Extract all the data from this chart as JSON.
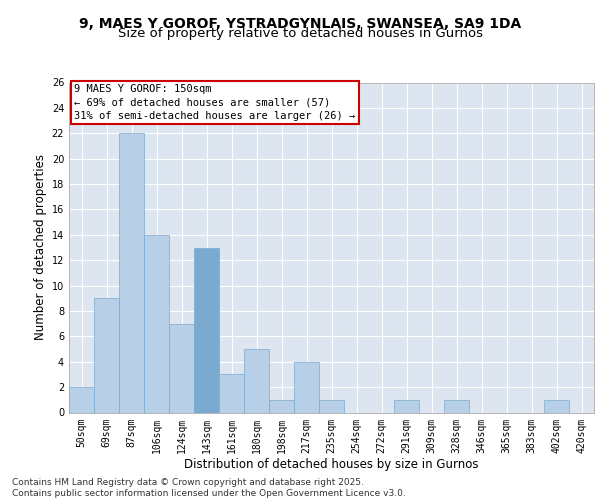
{
  "title1": "9, MAES Y GOROF, YSTRADGYNLAIS, SWANSEA, SA9 1DA",
  "title2": "Size of property relative to detached houses in Gurnos",
  "xlabel": "Distribution of detached houses by size in Gurnos",
  "ylabel": "Number of detached properties",
  "categories": [
    "50sqm",
    "69sqm",
    "87sqm",
    "106sqm",
    "124sqm",
    "143sqm",
    "161sqm",
    "180sqm",
    "198sqm",
    "217sqm",
    "235sqm",
    "254sqm",
    "272sqm",
    "291sqm",
    "309sqm",
    "328sqm",
    "346sqm",
    "365sqm",
    "383sqm",
    "402sqm",
    "420sqm"
  ],
  "values": [
    2,
    9,
    22,
    14,
    7,
    13,
    3,
    5,
    1,
    4,
    1,
    0,
    0,
    1,
    0,
    1,
    0,
    0,
    0,
    1,
    0
  ],
  "bar_color": "#b8cfe8",
  "bar_edge_color": "#7aaad0",
  "highlight_index": 5,
  "highlight_color": "#7aaad0",
  "annotation_box_text": "9 MAES Y GOROF: 150sqm\n← 69% of detached houses are smaller (57)\n31% of semi-detached houses are larger (26) →",
  "annotation_box_color": "#ffffff",
  "annotation_box_edge_color": "#cc0000",
  "background_color": "#dde6f0",
  "grid_color": "#ffffff",
  "ylim": [
    0,
    26
  ],
  "yticks": [
    0,
    2,
    4,
    6,
    8,
    10,
    12,
    14,
    16,
    18,
    20,
    22,
    24,
    26
  ],
  "footer_text": "Contains HM Land Registry data © Crown copyright and database right 2025.\nContains public sector information licensed under the Open Government Licence v3.0.",
  "title1_fontsize": 10,
  "title2_fontsize": 9.5,
  "xlabel_fontsize": 8.5,
  "ylabel_fontsize": 8.5,
  "tick_fontsize": 7,
  "annotation_fontsize": 7.5,
  "footer_fontsize": 6.5
}
